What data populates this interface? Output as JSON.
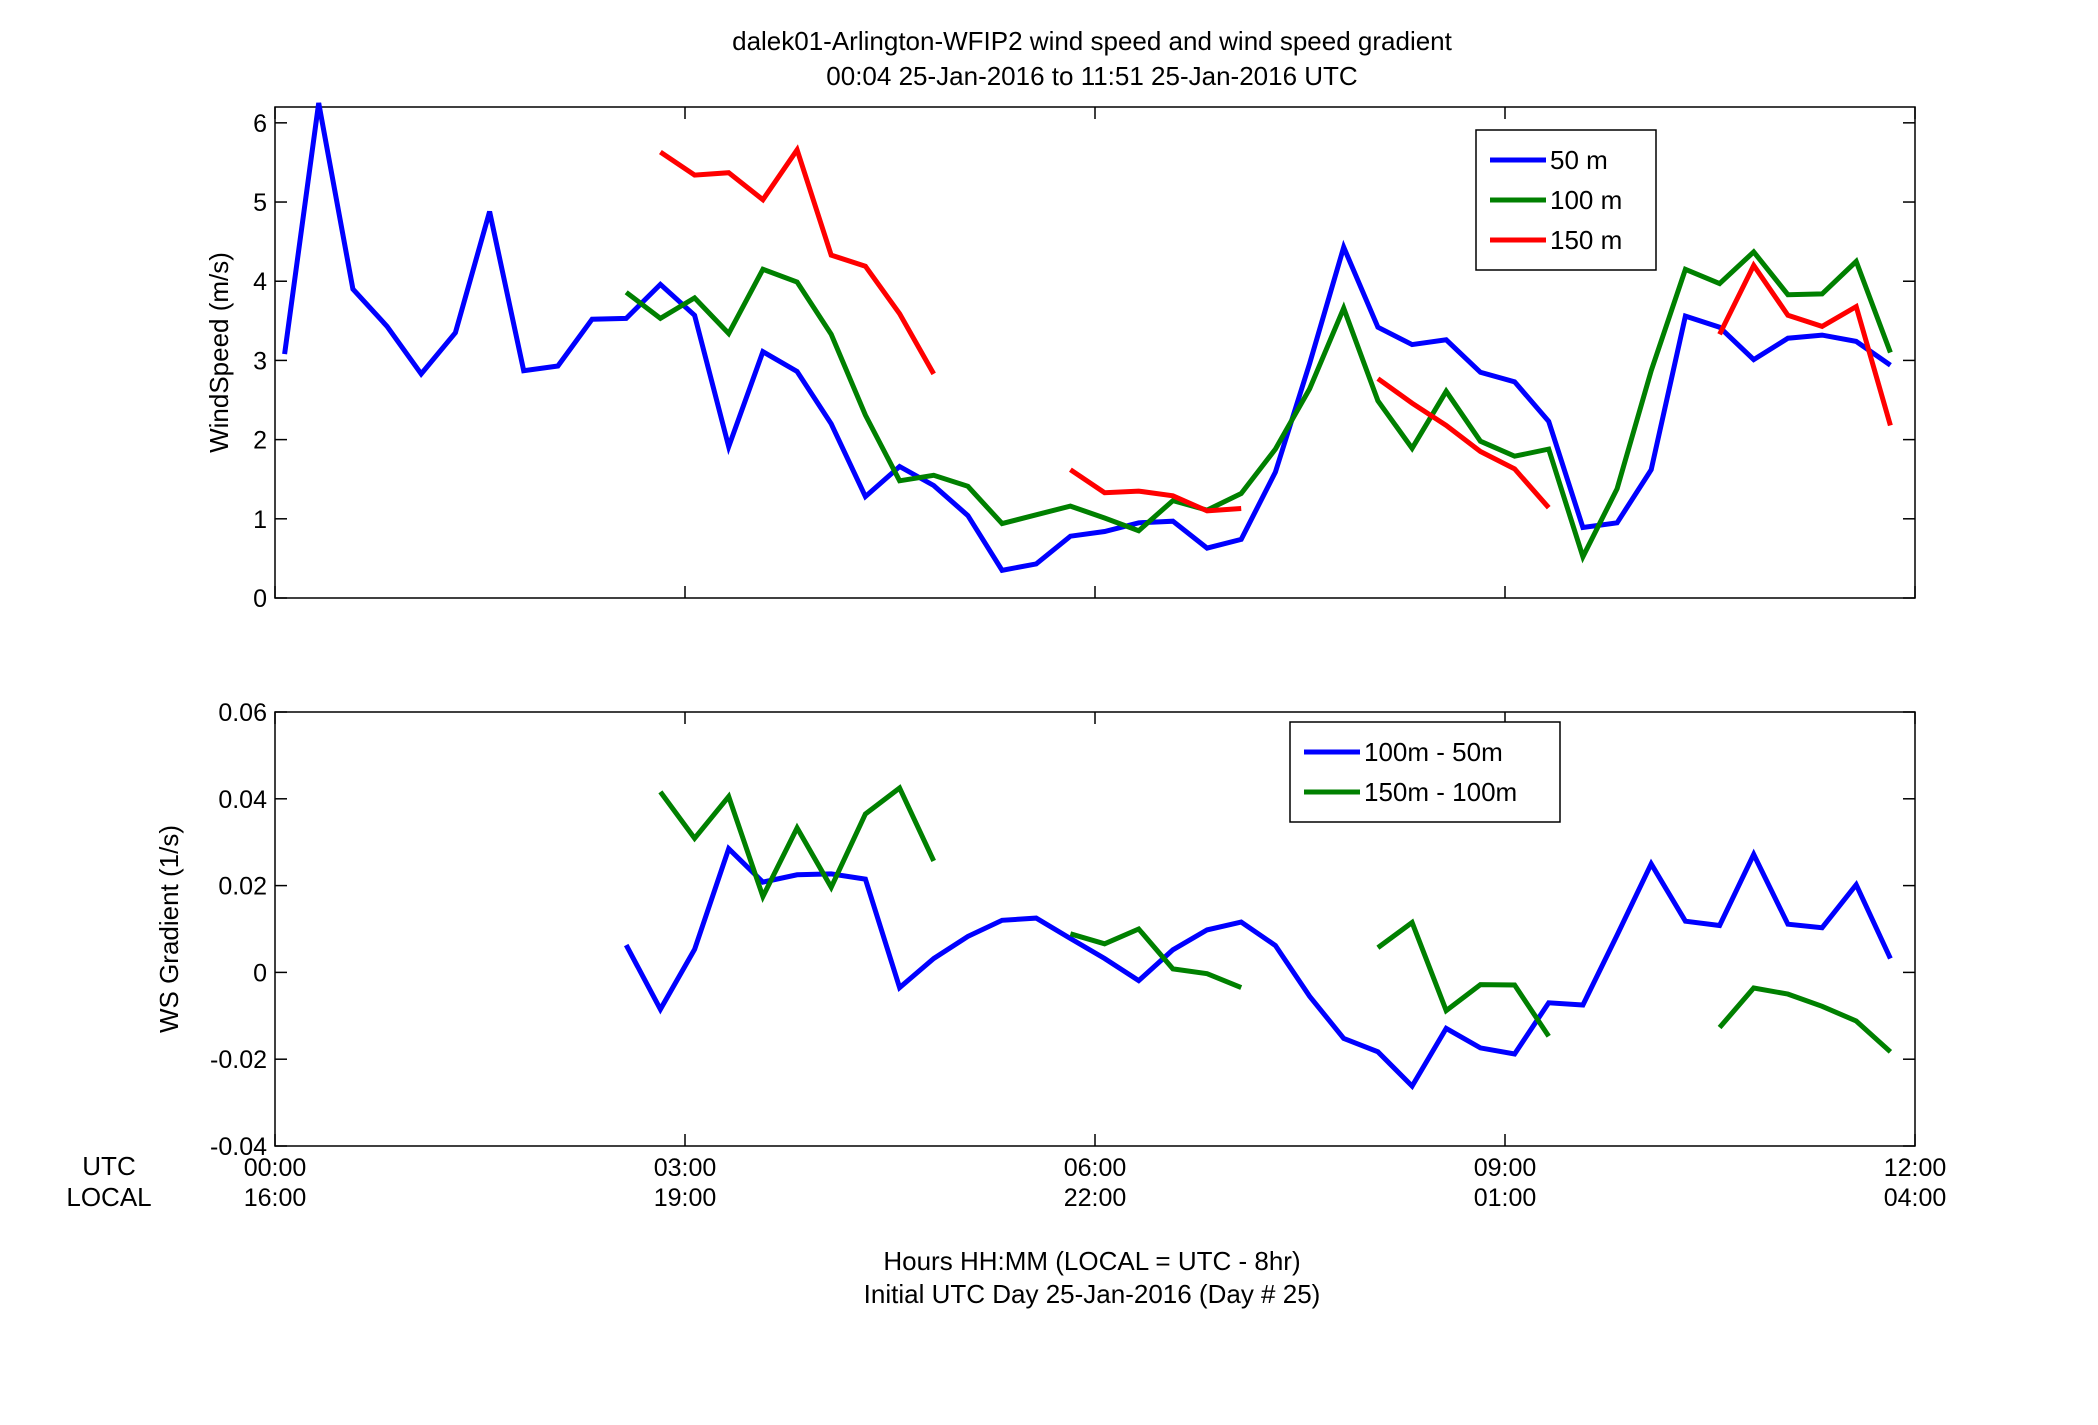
{
  "figure": {
    "title_line1": "dalek01-Arlington-WFIP2  wind speed and wind speed gradient",
    "title_line2": "00:04 25-Jan-2016 to 11:51 25-Jan-2016  UTC",
    "utc_row_label": "UTC",
    "local_row_label": "LOCAL",
    "xlabel_line1": "Hours HH:MM  (LOCAL = UTC - 8hr)",
    "xlabel_line2": "Initial UTC Day 25-Jan-2016 (Day # 25)"
  },
  "chart_data": [
    {
      "type": "line",
      "title": "",
      "xlabel": "",
      "ylabel": "WindSpeed (m/s)",
      "xlim": [
        0,
        12
      ],
      "ylim": [
        0,
        6.2
      ],
      "yticks": [
        0,
        1,
        2,
        3,
        4,
        5,
        6
      ],
      "ytick_labels": [
        "0",
        "1",
        "2",
        "3",
        "4",
        "5",
        "6"
      ],
      "grid": false,
      "legend": "top-right",
      "series": [
        {
          "name": "50 m",
          "color": "#0000ff",
          "x": [
            0.07,
            0.32,
            0.57,
            0.82,
            1.07,
            1.32,
            1.57,
            1.82,
            2.07,
            2.32,
            2.57,
            2.82,
            3.07,
            3.32,
            3.57,
            3.82,
            4.07,
            4.32,
            4.57,
            4.82,
            5.07,
            5.32,
            5.57,
            5.82,
            6.07,
            6.32,
            6.57,
            6.82,
            7.07,
            7.32,
            7.57,
            7.82,
            8.07,
            8.32,
            8.57,
            8.82,
            9.07,
            9.32,
            9.57,
            9.82,
            10.07,
            10.32,
            10.57,
            10.82,
            11.07,
            11.32,
            11.57,
            11.82
          ],
          "y": [
            3.08,
            6.25,
            3.9,
            3.43,
            2.83,
            3.35,
            4.88,
            2.87,
            2.93,
            3.52,
            3.53,
            3.96,
            3.57,
            1.91,
            3.11,
            2.86,
            2.2,
            1.28,
            1.66,
            1.42,
            1.04,
            0.35,
            0.43,
            0.78,
            0.84,
            0.95,
            0.97,
            0.63,
            0.74,
            1.59,
            2.96,
            4.43,
            3.42,
            3.2,
            3.26,
            2.85,
            2.73,
            2.23,
            0.89,
            0.95,
            1.62,
            3.56,
            3.42,
            3.01,
            3.28,
            3.32,
            3.24,
            2.94
          ]
        },
        {
          "name": "100 m",
          "color": "#008000",
          "x": [
            2.57,
            2.82,
            3.07,
            3.32,
            3.57,
            3.82,
            4.07,
            4.32,
            4.57,
            4.82,
            5.07,
            5.32,
            5.57,
            5.82,
            6.07,
            6.32,
            6.57,
            6.82,
            7.07,
            7.32,
            7.57,
            7.82,
            8.07,
            8.32,
            8.57,
            8.82,
            9.07,
            9.32,
            9.57,
            9.82,
            10.07,
            10.32,
            10.57,
            10.82,
            11.07,
            11.32,
            11.57,
            11.82
          ],
          "y": [
            3.86,
            3.53,
            3.79,
            3.34,
            4.15,
            3.99,
            3.33,
            2.31,
            1.48,
            1.55,
            1.41,
            0.94,
            1.05,
            1.16,
            1.01,
            0.85,
            1.23,
            1.11,
            1.32,
            1.88,
            2.64,
            3.66,
            2.49,
            1.89,
            2.61,
            1.98,
            1.79,
            1.88,
            0.52,
            1.38,
            2.87,
            4.15,
            3.97,
            4.37,
            3.83,
            3.84,
            4.25,
            3.1
          ]
        },
        {
          "name": "150 m",
          "color": "#ff0000",
          "x": [
            2.82,
            3.07,
            3.32,
            3.57,
            3.82,
            4.07,
            4.32,
            4.57,
            4.82,
            null,
            5.82,
            6.07,
            6.32,
            6.57,
            6.82,
            7.07,
            null,
            8.07,
            8.32,
            8.57,
            8.82,
            9.07,
            9.32,
            null,
            10.57,
            10.82,
            11.07,
            11.32,
            11.57,
            11.82
          ],
          "y": [
            5.63,
            5.34,
            5.37,
            5.03,
            5.66,
            4.33,
            4.19,
            3.59,
            2.83,
            null,
            1.62,
            1.33,
            1.35,
            1.29,
            1.1,
            1.13,
            null,
            2.77,
            2.46,
            2.18,
            1.85,
            1.63,
            1.14,
            null,
            3.33,
            4.2,
            3.57,
            3.43,
            3.68,
            2.18
          ]
        }
      ]
    },
    {
      "type": "line",
      "title": "",
      "xlabel": "",
      "ylabel": "WS Gradient (1/s)",
      "xlim": [
        0,
        12
      ],
      "ylim": [
        -0.04,
        0.06
      ],
      "yticks": [
        -0.04,
        -0.02,
        0,
        0.02,
        0.04,
        0.06
      ],
      "ytick_labels": [
        "-0.04",
        "-0.02",
        "0",
        "0.02",
        "0.04",
        "0.06"
      ],
      "xticks": [
        0,
        3,
        6,
        9,
        12
      ],
      "xtick_labels_utc": [
        "00:00",
        "03:00",
        "06:00",
        "09:00",
        "12:00"
      ],
      "xtick_labels_local": [
        "16:00",
        "19:00",
        "22:00",
        "01:00",
        "04:00"
      ],
      "grid": false,
      "legend": "top-right",
      "series": [
        {
          "name": "100m - 50m",
          "color": "#0000ff",
          "x": [
            2.57,
            2.82,
            3.07,
            3.32,
            3.57,
            3.82,
            4.07,
            4.32,
            4.57,
            4.82,
            5.07,
            5.32,
            5.57,
            5.82,
            6.07,
            6.32,
            6.57,
            6.82,
            7.07,
            7.32,
            7.57,
            7.82,
            8.07,
            8.32,
            8.57,
            8.82,
            9.07,
            9.32,
            9.57,
            9.82,
            10.07,
            10.32,
            10.57,
            10.82,
            11.07,
            11.32,
            11.57,
            11.82
          ],
          "y": [
            0.0063,
            -0.0085,
            0.0053,
            0.0285,
            0.0208,
            0.0225,
            0.0227,
            0.0215,
            -0.0035,
            0.0032,
            0.0083,
            0.012,
            0.0125,
            0.0078,
            0.0032,
            -0.0019,
            0.0052,
            0.0098,
            0.0116,
            0.0062,
            -0.0055,
            -0.0152,
            -0.0183,
            -0.0262,
            -0.0129,
            -0.0174,
            -0.0188,
            -0.007,
            -0.0075,
            0.0086,
            0.025,
            0.0118,
            0.0108,
            0.0272,
            0.0111,
            0.0103,
            0.0202,
            0.0032
          ]
        },
        {
          "name": "150m - 100m",
          "color": "#008000",
          "x": [
            2.82,
            3.07,
            3.32,
            3.57,
            3.82,
            4.07,
            4.32,
            4.57,
            4.82,
            null,
            5.82,
            6.07,
            6.32,
            6.57,
            6.82,
            7.07,
            null,
            8.07,
            8.32,
            8.57,
            8.82,
            9.07,
            9.32,
            null,
            10.57,
            10.82,
            11.07,
            11.32,
            11.57,
            11.82
          ],
          "y": [
            0.0416,
            0.0309,
            0.0405,
            0.0175,
            0.0333,
            0.0196,
            0.0365,
            0.0425,
            0.0257,
            null,
            0.0089,
            0.0066,
            0.01,
            0.0008,
            -0.0003,
            -0.0035,
            null,
            0.0057,
            0.0115,
            -0.0088,
            -0.0028,
            -0.0029,
            -0.0147,
            null,
            -0.0127,
            -0.0036,
            -0.005,
            -0.0078,
            -0.0112,
            -0.0183
          ]
        }
      ]
    }
  ]
}
